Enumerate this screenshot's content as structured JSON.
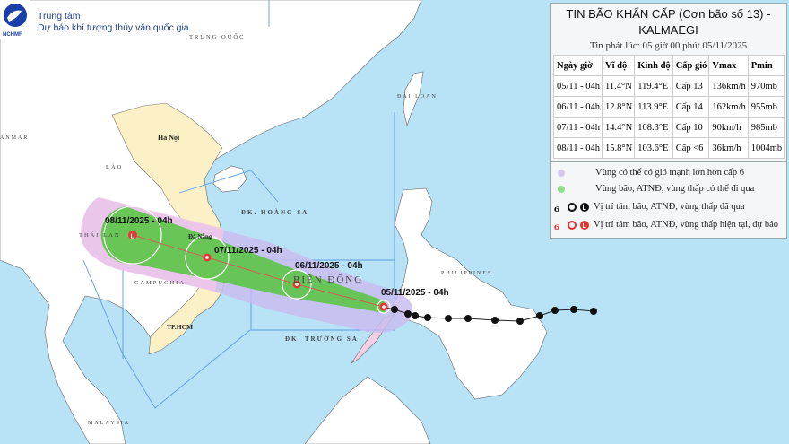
{
  "header": {
    "logo_text": "NCHMF",
    "org_line1": "Trung tâm",
    "org_line2": "Dự báo khí tượng thủy văn quốc gia"
  },
  "bulletin": {
    "title_line1": "TIN BÃO KHẨN CẤP (Cơn bão số 13) -",
    "title_line2": "KALMAEGI",
    "issued": "Tin phát lúc: 05 giờ 00 phút 05/11/2025",
    "columns": [
      "Ngày giờ",
      "Vĩ độ",
      "Kinh độ",
      "Cấp gió",
      "Vmax",
      "Pmin"
    ],
    "rows": [
      [
        "05/11 - 04h",
        "11.4°N",
        "119.4°E",
        "Cấp 13",
        "136km/h",
        "970mb"
      ],
      [
        "06/11 - 04h",
        "12.8°N",
        "113.9°E",
        "Cấp 14",
        "162km/h",
        "955mb"
      ],
      [
        "07/11 - 04h",
        "14.4°N",
        "108.3°E",
        "Cấp 10",
        "90km/h",
        "985mb"
      ],
      [
        "08/11 - 04h",
        "15.8°N",
        "103.6°E",
        "Cấp <6",
        "36km/h",
        "1004mb"
      ]
    ]
  },
  "legend": [
    {
      "icon": "purple-dot",
      "color": "#d4c8f0",
      "label": "Vùng có thể có gió mạnh lớn hơn cấp 6"
    },
    {
      "icon": "green-dot",
      "color": "#8fe08a",
      "label": "Vùng bão, ATNĐ, vùng thấp có thể đi qua"
    },
    {
      "icon": "black-storm-symbols",
      "color": "#111111",
      "label": "Vị trí tâm bão, ATNĐ, vùng thấp đã qua"
    },
    {
      "icon": "red-storm-symbols",
      "color": "#e83030",
      "label": "Vị trí tâm bão, ATNĐ, vùng thấp hiện tại, dự báo"
    }
  ],
  "map": {
    "colors": {
      "sea": "#b8e2f6",
      "vietnam": "#fbf0c6",
      "land": "#ffffff",
      "wind_zone": "#c9bdf0",
      "track_zone": "#5cc447",
      "storm": "#e53935"
    },
    "places": {
      "china": "TRUNG QUỐC",
      "hanoi": "Hà Nội",
      "laos": "LÀO",
      "thailand": "THÁI LAN",
      "cambodia": "CAMPUCHIA",
      "danang": "Đà Nẵng",
      "hcm": "TP.HCM",
      "malaysia": "MALAYSIA",
      "myanmar": "ANMAR",
      "paracel": "ĐK. HOÀNG SA",
      "east_sea": "BIỂN ĐÔNG",
      "spratly": "ĐK. TRƯỜNG SA",
      "taiwan": "ĐÀI LOAN",
      "philippines": "PHILIPPINES"
    },
    "storm_points": [
      {
        "label": "05/11/2025 - 04h",
        "lat": 11.4,
        "lon": 119.4
      },
      {
        "label": "06/11/2025 - 04h",
        "lat": 12.8,
        "lon": 113.9
      },
      {
        "label": "07/11/2025 - 04h",
        "lat": 14.4,
        "lon": 108.3
      },
      {
        "label": "08/11/2025 - 04h",
        "lat": 15.8,
        "lon": 103.6
      }
    ]
  }
}
